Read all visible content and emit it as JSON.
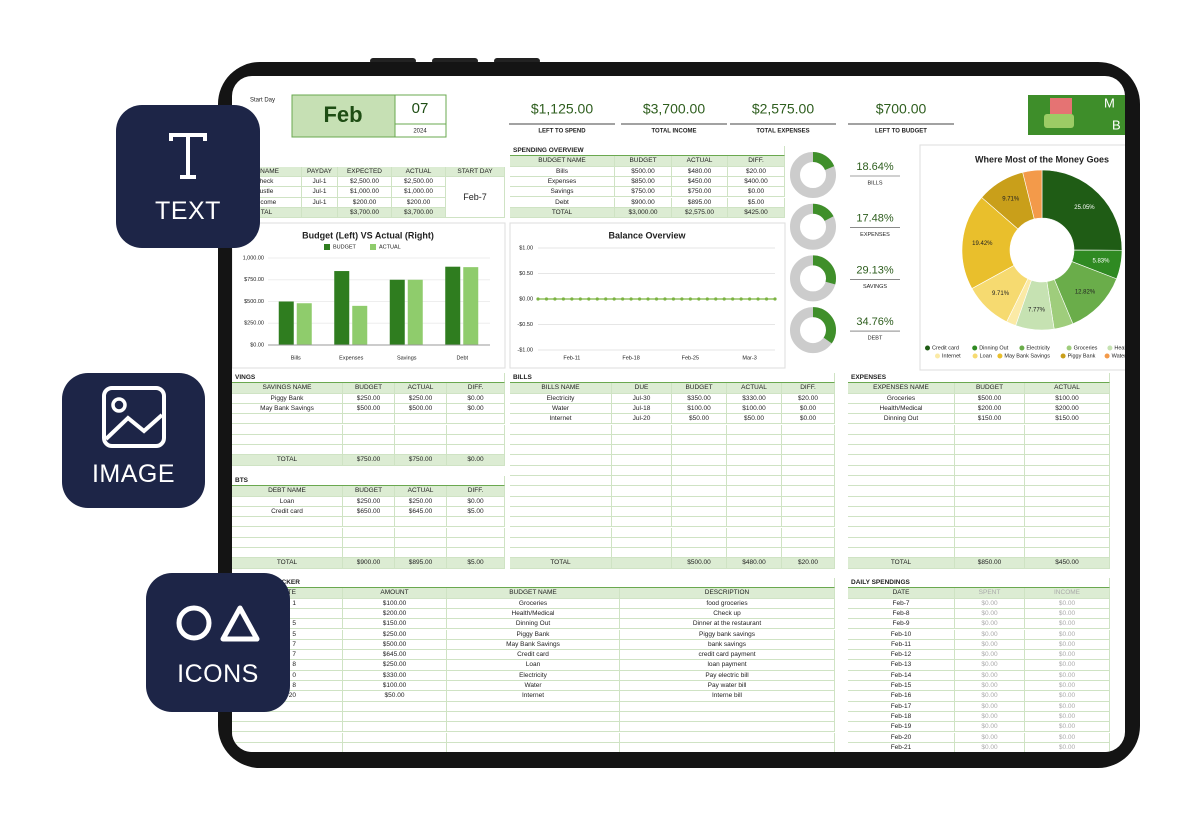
{
  "badges": [
    "TEXT",
    "IMAGE",
    "ICONS"
  ],
  "header": {
    "start_label": "Start Day",
    "month": "Feb",
    "day": "07",
    "year": "2024"
  },
  "summary": [
    {
      "value": "$1,125.00",
      "label": "LEFT TO SPEND"
    },
    {
      "value": "$3,700.00",
      "label": "TOTAL INCOME"
    },
    {
      "value": "$2,575.00",
      "label": "TOTAL EXPENSES"
    },
    {
      "value": "$700.00",
      "label": "LEFT TO BUDGET"
    }
  ],
  "logo": {
    "line1": "M",
    "line2": "B"
  },
  "income": {
    "columns": [
      "E NAME",
      "PAYDAY",
      "EXPECTED",
      "ACTUAL",
      "START DAY"
    ],
    "rows": [
      [
        "heck",
        "Jul-1",
        "$2,500.00",
        "$2,500.00"
      ],
      [
        "ustle",
        "Jul-1",
        "$1,000.00",
        "$1,000.00"
      ],
      [
        "ncome",
        "Jul-1",
        "$200.00",
        "$200.00"
      ]
    ],
    "total": [
      "TAL",
      null,
      "$3,700.00",
      "$3,700.00"
    ],
    "start_day": "Feb-7"
  },
  "spending_overview": {
    "title": "SPENDING OVERVIEW",
    "columns": [
      "BUDGET NAME",
      "BUDGET",
      "ACTUAL",
      "DIFF."
    ],
    "rows": [
      [
        "Bills",
        "$500.00",
        "$480.00",
        "$20.00"
      ],
      [
        "Expenses",
        "$850.00",
        "$450.00",
        "$400.00"
      ],
      [
        "Savings",
        "$750.00",
        "$750.00",
        "$0.00"
      ],
      [
        "Debt",
        "$900.00",
        "$895.00",
        "$5.00"
      ]
    ],
    "total": [
      "TOTAL",
      "$3,000.00",
      "$2,575.00",
      "$425.00"
    ]
  },
  "savings": {
    "title": "VINGS",
    "columns": [
      "SAVINGS NAME",
      "BUDGET",
      "ACTUAL",
      "DIFF."
    ],
    "rows": [
      [
        "Piggy Bank",
        "$250.00",
        "$250.00",
        "$0.00"
      ],
      [
        "May Bank Savings",
        "$500.00",
        "$500.00",
        "$0.00"
      ]
    ],
    "total": [
      "TOTAL",
      "$750.00",
      "$750.00",
      "$0.00"
    ]
  },
  "debts": {
    "title": "BTS",
    "columns": [
      "DEBT NAME",
      "BUDGET",
      "ACTUAL",
      "DIFF."
    ],
    "rows": [
      [
        "Loan",
        "$250.00",
        "$250.00",
        "$0.00"
      ],
      [
        "Credit card",
        "$650.00",
        "$645.00",
        "$5.00"
      ]
    ],
    "total": [
      "TOTAL",
      "$900.00",
      "$895.00",
      "$5.00"
    ]
  },
  "bills": {
    "title": "BILLS",
    "columns": [
      "BILLS NAME",
      "DUE",
      "BUDGET",
      "ACTUAL",
      "DIFF."
    ],
    "rows": [
      [
        "Electricity",
        "Jul-30",
        "$350.00",
        "$330.00",
        "$20.00"
      ],
      [
        "Water",
        "Jul-18",
        "$100.00",
        "$100.00",
        "$0.00"
      ],
      [
        "Internet",
        "Jul-20",
        "$50.00",
        "$50.00",
        "$0.00"
      ]
    ],
    "total": [
      "TOTAL",
      null,
      "$500.00",
      "$480.00",
      "$20.00"
    ]
  },
  "expenses": {
    "title": "EXPENSES",
    "columns": [
      "EXPENSES NAME",
      "BUDGET",
      "ACTUAL"
    ],
    "rows": [
      [
        "Groceries",
        "$500.00",
        "$100.00"
      ],
      [
        "Health/Medical",
        "$200.00",
        "$200.00"
      ],
      [
        "Dinning Out",
        "$150.00",
        "$150.00"
      ]
    ],
    "total": [
      "TOTAL",
      "$850.00",
      "$450.00"
    ]
  },
  "transactions": {
    "title": "S TRACKER",
    "columns": [
      "ATE",
      "AMOUNT",
      "BUDGET NAME",
      "DESCRIPTION"
    ],
    "rows": [
      [
        "1",
        "$100.00",
        "Groceries",
        "food groceries"
      ],
      [
        null,
        "$200.00",
        "Health/Medical",
        "Check up"
      ],
      [
        "5",
        "$150.00",
        "Dinning Out",
        "Dinner at the restaurant"
      ],
      [
        "5",
        "$250.00",
        "Piggy Bank",
        "Piggy bank savings"
      ],
      [
        "7",
        "$500.00",
        "May Bank Savings",
        "bank savings"
      ],
      [
        "7",
        "$645.00",
        "Credit card",
        "credit card payment"
      ],
      [
        "8",
        "$250.00",
        "Loan",
        "loan payment"
      ],
      [
        "0",
        "$330.00",
        "Electricity",
        "Pay electric bill"
      ],
      [
        "8",
        "$100.00",
        "Water",
        "Pay water bill"
      ],
      [
        "ul-20",
        "$50.00",
        "Internet",
        "Interne bill"
      ]
    ]
  },
  "daily_spendings": {
    "title": "DAILY SPENDINGS",
    "columns": [
      "DATE",
      "SPENT",
      "INCOME"
    ],
    "rows": [
      [
        "Feb-7",
        "$0.00",
        "$0.00"
      ],
      [
        "Feb-8",
        "$0.00",
        "$0.00"
      ],
      [
        "Feb-9",
        "$0.00",
        "$0.00"
      ],
      [
        "Feb-10",
        "$0.00",
        "$0.00"
      ],
      [
        "Feb-11",
        "$0.00",
        "$0.00"
      ],
      [
        "Feb-12",
        "$0.00",
        "$0.00"
      ],
      [
        "Feb-13",
        "$0.00",
        "$0.00"
      ],
      [
        "Feb-14",
        "$0.00",
        "$0.00"
      ],
      [
        "Feb-15",
        "$0.00",
        "$0.00"
      ],
      [
        "Feb-16",
        "$0.00",
        "$0.00"
      ],
      [
        "Feb-17",
        "$0.00",
        "$0.00"
      ],
      [
        "Feb-18",
        "$0.00",
        "$0.00"
      ],
      [
        "Feb-19",
        "$0.00",
        "$0.00"
      ],
      [
        "Feb-20",
        "$0.00",
        "$0.00"
      ],
      [
        "Feb-21",
        "$0.00",
        "$0.00"
      ]
    ]
  },
  "chart_data": [
    {
      "type": "bar",
      "title": "Budget (Left) VS Actual (Right)",
      "categories": [
        "Bills",
        "Expenses",
        "Savings",
        "Debt"
      ],
      "series": [
        {
          "name": "BUDGET",
          "color": "#2f7d1f",
          "values": [
            500,
            850,
            750,
            900
          ]
        },
        {
          "name": "ACTUAL",
          "color": "#8fcc6c",
          "values": [
            480,
            450,
            750,
            895
          ]
        }
      ],
      "ylim": [
        0,
        1000
      ],
      "yticks": [
        {
          "value": 0,
          "label": "$0.00"
        },
        {
          "value": 250,
          "label": "$250.00"
        },
        {
          "value": 500,
          "label": "$500.00"
        },
        {
          "value": 750,
          "label": "$750.00"
        },
        {
          "value": 1000,
          "label": "1,000.00"
        }
      ],
      "grid": true
    },
    {
      "type": "line",
      "title": "Balance Overview",
      "categories": [
        null,
        null,
        null,
        null,
        "Feb-11",
        null,
        null,
        null,
        null,
        null,
        null,
        "Feb-18",
        null,
        null,
        null,
        null,
        null,
        null,
        "Feb-25",
        null,
        null,
        null,
        null,
        null,
        null,
        "Mar-3",
        null,
        null,
        null
      ],
      "values": [
        0,
        0,
        0,
        0,
        0,
        0,
        0,
        0,
        0,
        0,
        0,
        0,
        0,
        0,
        0,
        0,
        0,
        0,
        0,
        0,
        0,
        0,
        0,
        0,
        0,
        0,
        0,
        0,
        0
      ],
      "color": "#7cb342",
      "ylim": [
        -1,
        1
      ],
      "yticks": [
        {
          "value": 1,
          "label": "$1.00"
        },
        {
          "value": 0.5,
          "label": "$0.50"
        },
        {
          "value": 0,
          "label": "$0.00"
        },
        {
          "value": -0.5,
          "label": "-$0.50"
        },
        {
          "value": -1,
          "label": "-$1.00"
        }
      ],
      "grid": true
    },
    {
      "type": "donut",
      "categories": [
        "BILLS",
        "EXPENSES",
        "SAVINGS",
        "DEBT"
      ],
      "values": [
        18.64,
        17.48,
        29.13,
        34.76
      ],
      "value_labels": [
        "18.64%",
        "17.48%",
        "29.13%",
        "34.76%"
      ],
      "color": "#3f8f2a",
      "track_color": "#cccccc"
    },
    {
      "type": "pie",
      "title": "Where Most of the Money Goes",
      "categories": [
        "Credit card",
        "Dinning Out",
        "Electricity",
        "Groceries",
        "Health/Medical",
        "Internet",
        "Loan",
        "May Bank Savings",
        "Piggy Bank",
        "Water"
      ],
      "values": [
        25.05,
        5.83,
        12.82,
        3.88,
        7.77,
        1.94,
        9.71,
        19.42,
        9.71,
        3.88
      ],
      "value_labels": [
        "25.05%",
        "5.83%",
        "12.82%",
        null,
        "7.77%",
        null,
        "9.71%",
        "19.42%",
        "9.71%",
        null
      ],
      "colors": [
        "#1f5c15",
        "#2f8a22",
        "#6aad4a",
        "#9fcd7c",
        "#c6e2b2",
        "#fbeaa6",
        "#f6da70",
        "#e9bf2c",
        "#c99f1a",
        "#f39a4a"
      ],
      "legend": "bottom"
    }
  ]
}
